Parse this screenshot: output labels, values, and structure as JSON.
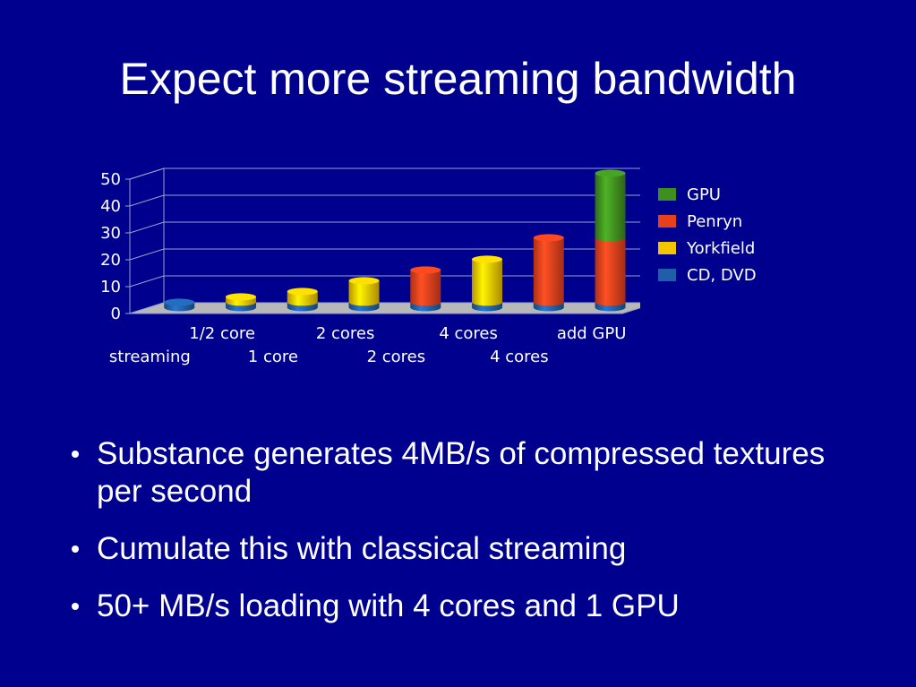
{
  "slide": {
    "title": "Expect more streaming bandwidth",
    "bullets": [
      "Substance generates 4MB/s of compressed textures per second",
      "Cumulate this with classical streaming",
      "50+ MB/s loading with 4 cores and 1 GPU"
    ]
  },
  "chart_data": {
    "type": "bar",
    "stacked": true,
    "categories": [
      "streaming",
      "1/2 core",
      "1 core",
      "2 cores",
      "2 cores",
      "4 cores",
      "4 cores",
      "add GPU"
    ],
    "series": [
      {
        "name": "CD, DVD",
        "color": "#1f5fa8",
        "values": [
          2,
          2,
          2,
          2,
          2,
          2,
          2,
          2
        ]
      },
      {
        "name": "Yorkfield",
        "color": "#f5c400",
        "values": [
          0,
          2,
          4,
          8,
          0,
          16,
          0,
          0
        ]
      },
      {
        "name": "Penryn",
        "color": "#e8401c",
        "values": [
          0,
          0,
          0,
          0,
          12,
          0,
          24,
          24
        ]
      },
      {
        "name": "GPU",
        "color": "#3f8f1f",
        "values": [
          0,
          0,
          0,
          0,
          0,
          0,
          0,
          24
        ]
      }
    ],
    "legend_order": [
      "GPU",
      "Penryn",
      "Yorkfield",
      "CD, DVD"
    ],
    "yticks": [
      "0",
      "10",
      "20",
      "30",
      "40",
      "50"
    ],
    "ylim": [
      0,
      50
    ],
    "grid": true,
    "legend_position": "right",
    "xlabels_row1": [
      "1/2 core",
      "2 cores",
      "4 cores",
      "add GPU"
    ],
    "xlabels_row2": [
      "streaming",
      "1 core",
      "2 cores",
      "4 cores"
    ]
  }
}
